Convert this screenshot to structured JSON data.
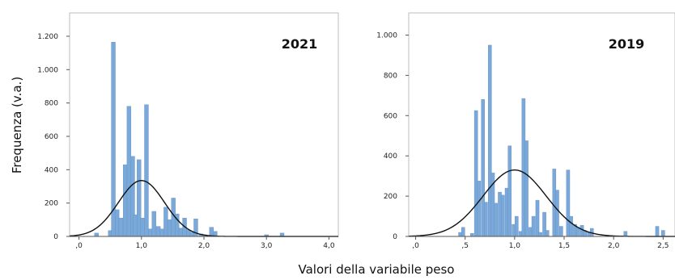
{
  "ylabel": "Frequenza (v.a.)",
  "xlabel": "Valori della variabile peso",
  "colors": {
    "bar": "#7aa8d8",
    "bar_edge": "#5f8fc4",
    "curve": "#111111",
    "frame": "#bcbcbc"
  },
  "chart_data": [
    {
      "type": "bar",
      "title": "2021",
      "xlabel": "Valori della variabile peso",
      "ylabel": "Frequenza (v.a.)",
      "xlim": [
        -0.15,
        4.15
      ],
      "ylim": [
        0,
        1340
      ],
      "grid": false,
      "x_ticks": [
        0,
        1,
        2,
        3,
        4
      ],
      "x_tick_labels": [
        ",0",
        "1,0",
        "2,0",
        "3,0",
        "4,0"
      ],
      "y_ticks": [
        0,
        200,
        400,
        600,
        800,
        1000,
        1200
      ],
      "y_tick_labels": [
        "0",
        "200",
        "400",
        "600",
        "800",
        "1.000",
        "1.200"
      ],
      "bin_width": 0.064,
      "bars": [
        {
          "x": 0.28,
          "y": 20
        },
        {
          "x": 0.5,
          "y": 35
        },
        {
          "x": 0.55,
          "y": 1165
        },
        {
          "x": 0.61,
          "y": 160
        },
        {
          "x": 0.67,
          "y": 110
        },
        {
          "x": 0.74,
          "y": 430
        },
        {
          "x": 0.8,
          "y": 780
        },
        {
          "x": 0.86,
          "y": 480
        },
        {
          "x": 0.9,
          "y": 130
        },
        {
          "x": 0.96,
          "y": 460
        },
        {
          "x": 1.02,
          "y": 110
        },
        {
          "x": 1.08,
          "y": 790
        },
        {
          "x": 1.14,
          "y": 45
        },
        {
          "x": 1.2,
          "y": 150
        },
        {
          "x": 1.27,
          "y": 60
        },
        {
          "x": 1.33,
          "y": 45
        },
        {
          "x": 1.39,
          "y": 175
        },
        {
          "x": 1.45,
          "y": 100
        },
        {
          "x": 1.51,
          "y": 230
        },
        {
          "x": 1.57,
          "y": 135
        },
        {
          "x": 1.63,
          "y": 50
        },
        {
          "x": 1.69,
          "y": 110
        },
        {
          "x": 1.75,
          "y": 40
        },
        {
          "x": 1.81,
          "y": 25
        },
        {
          "x": 1.87,
          "y": 105
        },
        {
          "x": 1.95,
          "y": 15
        },
        {
          "x": 2.01,
          "y": 10
        },
        {
          "x": 2.12,
          "y": 55
        },
        {
          "x": 2.18,
          "y": 30
        },
        {
          "x": 3.0,
          "y": 10
        },
        {
          "x": 3.25,
          "y": 20
        }
      ],
      "normal_curve": {
        "mean": 1.0,
        "sd": 0.37,
        "peak": 335
      }
    },
    {
      "type": "bar",
      "title": "2019",
      "xlabel": "Valori della variabile peso",
      "ylabel": "Frequenza (v.a.)",
      "xlim": [
        -0.07,
        2.62
      ],
      "ylim": [
        0,
        1110
      ],
      "grid": false,
      "x_ticks": [
        0,
        0.5,
        1,
        1.5,
        2,
        2.5
      ],
      "x_tick_labels": [
        ",0",
        ",5",
        "1,0",
        "1,5",
        "2,0",
        "2,5"
      ],
      "y_ticks": [
        0,
        200,
        400,
        600,
        800,
        1000
      ],
      "y_tick_labels": [
        "0",
        "200",
        "400",
        "600",
        "800",
        "1.000"
      ],
      "bin_width": 0.034,
      "bars": [
        {
          "x": 0.45,
          "y": 20
        },
        {
          "x": 0.48,
          "y": 45
        },
        {
          "x": 0.57,
          "y": 15
        },
        {
          "x": 0.61,
          "y": 625
        },
        {
          "x": 0.64,
          "y": 275
        },
        {
          "x": 0.68,
          "y": 680
        },
        {
          "x": 0.71,
          "y": 170
        },
        {
          "x": 0.75,
          "y": 950
        },
        {
          "x": 0.78,
          "y": 315
        },
        {
          "x": 0.81,
          "y": 165
        },
        {
          "x": 0.85,
          "y": 220
        },
        {
          "x": 0.88,
          "y": 205
        },
        {
          "x": 0.92,
          "y": 240
        },
        {
          "x": 0.95,
          "y": 450
        },
        {
          "x": 0.99,
          "y": 60
        },
        {
          "x": 1.02,
          "y": 100
        },
        {
          "x": 1.06,
          "y": 25
        },
        {
          "x": 1.09,
          "y": 685
        },
        {
          "x": 1.12,
          "y": 475
        },
        {
          "x": 1.16,
          "y": 45
        },
        {
          "x": 1.19,
          "y": 100
        },
        {
          "x": 1.23,
          "y": 180
        },
        {
          "x": 1.26,
          "y": 20
        },
        {
          "x": 1.3,
          "y": 120
        },
        {
          "x": 1.33,
          "y": 30
        },
        {
          "x": 1.4,
          "y": 335
        },
        {
          "x": 1.43,
          "y": 230
        },
        {
          "x": 1.47,
          "y": 50
        },
        {
          "x": 1.54,
          "y": 330
        },
        {
          "x": 1.57,
          "y": 100
        },
        {
          "x": 1.61,
          "y": 60
        },
        {
          "x": 1.64,
          "y": 45
        },
        {
          "x": 1.68,
          "y": 55
        },
        {
          "x": 1.71,
          "y": 30
        },
        {
          "x": 1.75,
          "y": 20
        },
        {
          "x": 1.78,
          "y": 40
        },
        {
          "x": 2.12,
          "y": 25
        },
        {
          "x": 2.44,
          "y": 50
        },
        {
          "x": 2.5,
          "y": 30
        }
      ],
      "normal_curve": {
        "mean": 1.0,
        "sd": 0.32,
        "peak": 330
      }
    }
  ]
}
